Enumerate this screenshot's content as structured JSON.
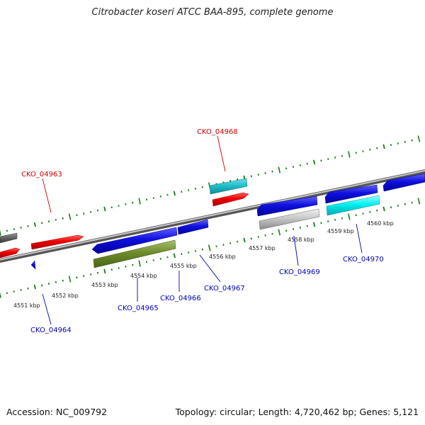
{
  "title": "Citrobacter koseri ATCC BAA-895, complete genome",
  "footer": {
    "accession": "Accession: NC_009792",
    "summary": "Topology: circular; Length: 4,720,462 bp; Genes: 5,121"
  },
  "colors": {
    "forward_label": "#cc0000",
    "reverse_label": "#0000bb",
    "tick": "#1a7a1a",
    "backbone": "#8a8a8a"
  },
  "kbp_labels": [
    "4551 kbp",
    "4552 kbp",
    "4553 kbp",
    "4554 kbp",
    "4555 kbp",
    "4556 kbp",
    "4557 kbp",
    "4558 kbp",
    "4559 kbp",
    "4560 kbp"
  ],
  "gene_labels": [
    {
      "name": "CKO_04963",
      "strand": "forward"
    },
    {
      "name": "CKO_04968",
      "strand": "forward"
    },
    {
      "name": "CKO_04964",
      "strand": "reverse"
    },
    {
      "name": "CKO_04965",
      "strand": "reverse"
    },
    {
      "name": "CKO_04966",
      "strand": "reverse"
    },
    {
      "name": "CKO_04967",
      "strand": "reverse"
    },
    {
      "name": "CKO_04969",
      "strand": "reverse"
    },
    {
      "name": "CKO_04970",
      "strand": "reverse"
    }
  ]
}
